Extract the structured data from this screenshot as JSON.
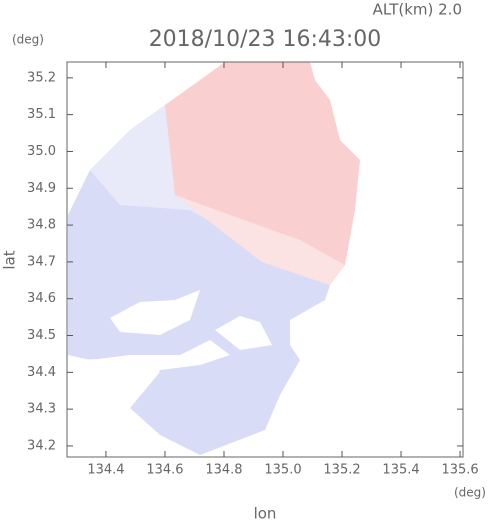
{
  "chart_data": {
    "type": "map",
    "title": "2018/10/23 16:43:00",
    "subtitle": "ALT(km) 2.0",
    "y_unit": "(deg)",
    "x_unit": "(deg)",
    "xlabel": "lon",
    "ylabel": "lat",
    "xlim": [
      134.268,
      135.61
    ],
    "ylim": [
      34.17,
      35.243
    ],
    "xticks": [
      134.4,
      134.6,
      134.8,
      {
        "value": 135,
        "label": "135.0"
      },
      135.2,
      135.4,
      135.6
    ],
    "yticks": [
      34.2,
      34.3,
      34.4,
      34.5,
      34.6,
      34.7,
      34.8,
      34.9,
      {
        "value": 35,
        "label": "35.0"
      },
      35.1,
      35.2
    ]
  }
}
